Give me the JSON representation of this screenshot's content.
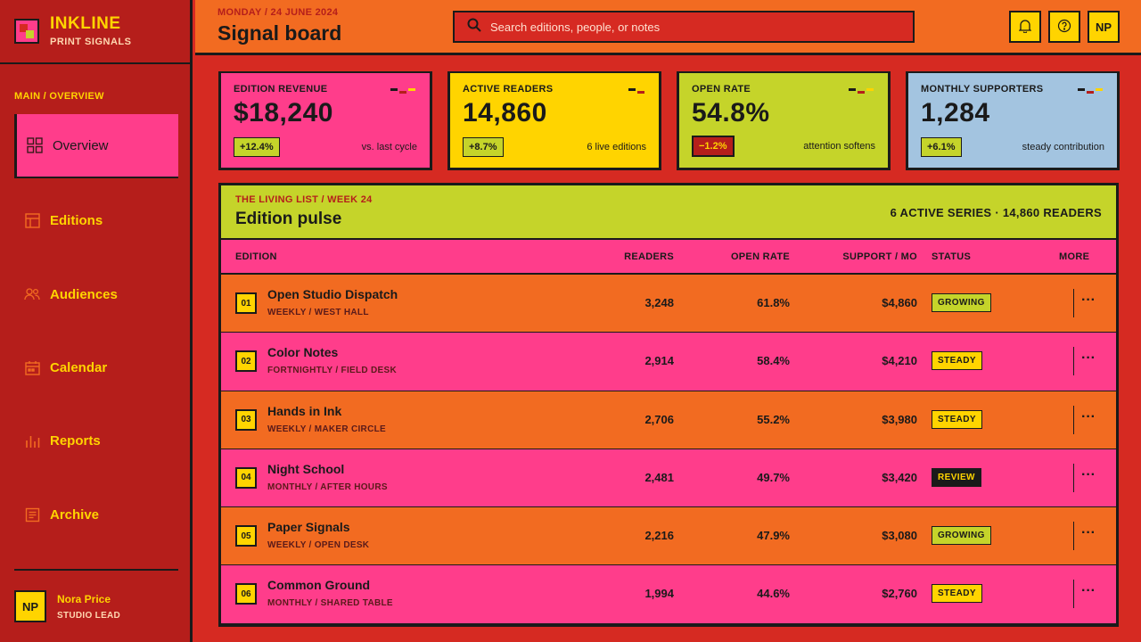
{
  "brand": {
    "name": "INKLINE",
    "subtitle": "PRINT SIGNALS"
  },
  "nav": {
    "heading": "MAIN / OVERVIEW",
    "items": [
      {
        "label": "Overview",
        "icon": "grid-icon",
        "active": true
      },
      {
        "label": "Editions",
        "icon": "table-icon"
      },
      {
        "label": "Audiences",
        "icon": "users-icon"
      },
      {
        "label": "Calendar",
        "icon": "calendar-icon"
      },
      {
        "label": "Reports",
        "icon": "bar-chart-icon"
      },
      {
        "label": "Archive",
        "icon": "document-icon"
      }
    ]
  },
  "user": {
    "initials": "NP",
    "name": "Nora Price",
    "role": "STUDIO LEAD"
  },
  "header": {
    "date": "MONDAY / 24 JUNE 2024",
    "title": "Signal board",
    "search_placeholder": "Search editions, people, or notes",
    "avatar_initials": "NP"
  },
  "kpis": [
    {
      "label": "EDITION REVENUE",
      "value": "$18,240",
      "delta": "+12.4%",
      "note": "vs. last cycle",
      "bg": "#ff3d8b",
      "badge_bg": "#c5d42a"
    },
    {
      "label": "ACTIVE READERS",
      "value": "14,860",
      "delta": "+8.7%",
      "note": "6 live editions",
      "bg": "#ffd400",
      "badge_bg": "#c5d42a"
    },
    {
      "label": "OPEN RATE",
      "value": "54.8%",
      "delta": "−1.2%",
      "note": "attention softens",
      "bg": "#c5d42a",
      "badge_bg": "#b51e1b"
    },
    {
      "label": "MONTHLY SUPPORTERS",
      "value": "1,284",
      "delta": "+6.1%",
      "note": "steady contribution",
      "bg": "#a3c4e0",
      "badge_bg": "#c5d42a"
    }
  ],
  "panel": {
    "kicker": "THE LIVING LIST / WEEK 24",
    "title": "Edition pulse",
    "summary": "6 ACTIVE SERIES · 14,860 READERS",
    "columns": {
      "edition": "EDITION",
      "readers": "READERS",
      "open_rate": "OPEN RATE",
      "support": "SUPPORT / MO",
      "status": "STATUS",
      "more": "MORE"
    },
    "rows": [
      {
        "idx": "01",
        "name": "Open Studio Dispatch",
        "meta": "WEEKLY / WEST HALL",
        "readers": "3,248",
        "open_rate": "61.8%",
        "support": "$4,860",
        "status": "GROWING",
        "status_kind": "growing",
        "bg": "orange"
      },
      {
        "idx": "02",
        "name": "Color Notes",
        "meta": "FORTNIGHTLY / FIELD DESK",
        "readers": "2,914",
        "open_rate": "58.4%",
        "support": "$4,210",
        "status": "STEADY",
        "status_kind": "steady",
        "bg": "pink"
      },
      {
        "idx": "03",
        "name": "Hands in Ink",
        "meta": "WEEKLY / MAKER CIRCLE",
        "readers": "2,706",
        "open_rate": "55.2%",
        "support": "$3,980",
        "status": "STEADY",
        "status_kind": "steady",
        "bg": "orange"
      },
      {
        "idx": "04",
        "name": "Night School",
        "meta": "MONTHLY / AFTER HOURS",
        "readers": "2,481",
        "open_rate": "49.7%",
        "support": "$3,420",
        "status": "REVIEW",
        "status_kind": "review",
        "bg": "pink"
      },
      {
        "idx": "05",
        "name": "Paper Signals",
        "meta": "WEEKLY / OPEN DESK",
        "readers": "2,216",
        "open_rate": "47.9%",
        "support": "$3,080",
        "status": "GROWING",
        "status_kind": "growing",
        "bg": "orange"
      },
      {
        "idx": "06",
        "name": "Common Ground",
        "meta": "MONTHLY / SHARED TABLE",
        "readers": "1,994",
        "open_rate": "44.6%",
        "support": "$2,760",
        "status": "STEADY",
        "status_kind": "steady",
        "bg": "pink"
      }
    ]
  },
  "colors": {
    "pink": "#ff3d8b",
    "orange": "#f26b21",
    "red": "#d62a22",
    "yellow": "#ffd400",
    "lime": "#c5d42a",
    "ink": "#1a1a1a"
  }
}
